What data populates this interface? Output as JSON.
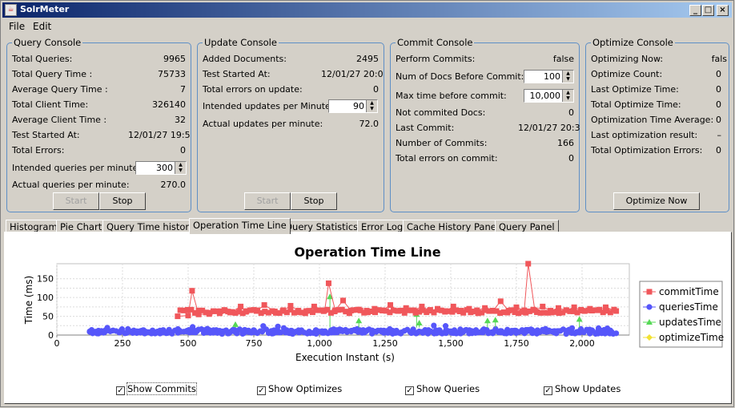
{
  "window": {
    "title": "SolrMeter",
    "min": "_",
    "max": "□",
    "close": "×"
  },
  "menu": [
    "File",
    "Edit"
  ],
  "query_console": {
    "title": "Query Console",
    "rows": [
      {
        "label": "Total Queries:",
        "value": "9965"
      },
      {
        "label": "Total Query Time :",
        "value": "75733"
      },
      {
        "label": "Average Query Time :",
        "value": "7"
      },
      {
        "label": "Total Client Time:",
        "value": "326140"
      },
      {
        "label": "Average Client Time :",
        "value": "32"
      },
      {
        "label": "Test Started At:",
        "value": "12/01/27 19:5"
      },
      {
        "label": "Total Errors:",
        "value": "0"
      }
    ],
    "intended_label": "Intended queries per minute:",
    "intended_value": "300",
    "actual_label": "Actual queries per minute:",
    "actual_value": "270.0",
    "start": "Start",
    "stop": "Stop"
  },
  "update_console": {
    "title": "Update Console",
    "rows": [
      {
        "label": "Added Documents:",
        "value": "2495"
      },
      {
        "label": "Test Started At:",
        "value": "12/01/27 20:0"
      },
      {
        "label": "Total errors on update:",
        "value": "0"
      }
    ],
    "intended_label": "Intended updates per Minute:",
    "intended_value": "90",
    "actual_label": "Actual updates per minute:",
    "actual_value": "72.0",
    "start": "Start",
    "stop": "Stop"
  },
  "commit_console": {
    "title": "Commit Console",
    "perform_label": "Perform Commits:",
    "perform_value": "false",
    "docs_label": "Num of Docs Before Commit:",
    "docs_value": "100",
    "maxtime_label": "Max time before commit:",
    "maxtime_value": "10,000",
    "rows": [
      {
        "label": "Not commited Docs:",
        "value": "0"
      },
      {
        "label": "Last Commit:",
        "value": "12/01/27 20:3"
      },
      {
        "label": "Number of Commits:",
        "value": "166"
      },
      {
        "label": "Total errors on commit:",
        "value": "0"
      }
    ]
  },
  "optimize_console": {
    "title": "Optimize Console",
    "rows": [
      {
        "label": "Optimizing Now:",
        "value": "fals"
      },
      {
        "label": "Optimize Count:",
        "value": "0"
      },
      {
        "label": "Last Optimize Time:",
        "value": "0"
      },
      {
        "label": "Total Optimize Time:",
        "value": "0"
      },
      {
        "label": "Optimization Time Average:",
        "value": "0"
      },
      {
        "label": "Last optimization result:",
        "value": "–"
      },
      {
        "label": "Total Optimization Errors:",
        "value": "0"
      }
    ],
    "button": "Optimize Now"
  },
  "tabs": [
    "Histogram",
    "Pie Chart",
    "Query Time history",
    "Operation Time Line",
    "Query Statistics",
    "Error Log",
    "Cache History Panel",
    "Query Panel"
  ],
  "active_tab": 3,
  "checkboxes": [
    {
      "label": "Show Commits",
      "checked": true
    },
    {
      "label": "Show Optimizes",
      "checked": true
    },
    {
      "label": "Show Queries",
      "checked": true
    },
    {
      "label": "Show Updates",
      "checked": true
    }
  ],
  "chart_data": {
    "type": "scatter",
    "title": "Operation Time Line",
    "xlabel": "Execution Instant (s)",
    "ylabel": "Time (ms)",
    "xlim": [
      0,
      2180
    ],
    "ylim": [
      0,
      190
    ],
    "xticks": [
      0,
      250,
      500,
      750,
      1000,
      1250,
      1500,
      1750,
      2000
    ],
    "xticklabels": [
      "0",
      "250",
      "500",
      "750",
      "1,000",
      "1,250",
      "1,500",
      "1,750",
      "2,000"
    ],
    "yticks": [
      0,
      25,
      50,
      75,
      100,
      125,
      150
    ],
    "legend_position": "right",
    "series": [
      {
        "name": "commitTime",
        "color": "#f0575b",
        "marker": "square",
        "x": [
          460,
          500,
          515,
          540,
          580,
          620,
          640,
          660,
          700,
          720,
          760,
          790,
          830,
          860,
          890,
          920,
          950,
          980,
          1020,
          1035,
          1060,
          1090,
          1120,
          1150,
          1180,
          1210,
          1240,
          1270,
          1300,
          1330,
          1360,
          1390,
          1420,
          1450,
          1480,
          1510,
          1540,
          1570,
          1600,
          1630,
          1660,
          1690,
          1720,
          1750,
          1780,
          1795,
          1820,
          1850,
          1880,
          1910,
          1940,
          1970,
          2000,
          2030,
          2060,
          2090,
          2130
        ],
        "y": [
          50,
          52,
          118,
          55,
          56,
          58,
          65,
          60,
          76,
          62,
          64,
          80,
          63,
          64,
          78,
          65,
          64,
          76,
          66,
          138,
          66,
          92,
          65,
          68,
          65,
          70,
          66,
          80,
          64,
          72,
          66,
          76,
          65,
          70,
          64,
          76,
          65,
          70,
          66,
          72,
          64,
          90,
          65,
          74,
          66,
          190,
          66,
          76,
          65,
          72,
          66,
          74,
          65,
          70,
          66,
          74,
          64
        ]
      },
      {
        "name": "queriesTime",
        "color": "#5656fa",
        "marker": "circle",
        "x_range": [
          125,
          2130
        ],
        "y_range": [
          3,
          28
        ],
        "count": 180
      },
      {
        "name": "updatesTime",
        "color": "#56d856",
        "marker": "triangle",
        "x": [
          680,
          1040,
          1150,
          1370,
          1380,
          1640,
          1670,
          1990
        ],
        "y": [
          28,
          102,
          38,
          55,
          32,
          38,
          40,
          42
        ]
      },
      {
        "name": "optimizeTime",
        "color": "#f2e234",
        "marker": "diamond",
        "x": [],
        "y": []
      }
    ]
  }
}
